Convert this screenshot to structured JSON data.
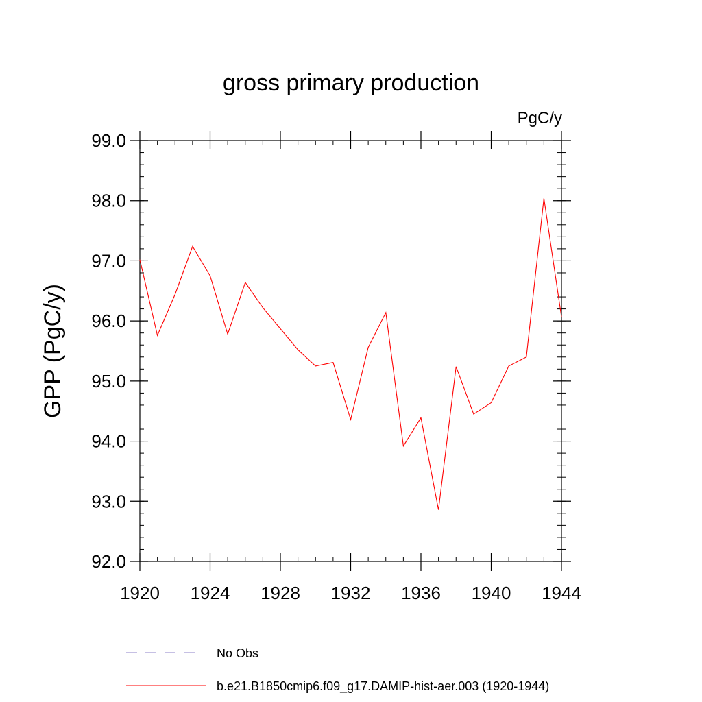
{
  "chart_data": {
    "type": "line",
    "title": "gross primary production",
    "units": "PgC/y",
    "xlabel": "",
    "ylabel": "GPP  (PgC/y)",
    "xlim": [
      1920,
      1944
    ],
    "ylim": [
      92.0,
      99.0
    ],
    "x_ticks": [
      "1920",
      "1924",
      "1928",
      "1932",
      "1936",
      "1940",
      "1944"
    ],
    "y_ticks": [
      "92.0",
      "93.0",
      "94.0",
      "95.0",
      "96.0",
      "97.0",
      "98.0",
      "99.0"
    ],
    "grid": false,
    "legend_position": "bottom",
    "series": [
      {
        "name": "b.e21.B1850cmip6.f09_g17.DAMIP-hist-aer.003 (1920-1944)",
        "color": "#ff0000",
        "style": "solid",
        "x": [
          1920,
          1921,
          1922,
          1923,
          1924,
          1925,
          1926,
          1927,
          1928,
          1929,
          1930,
          1931,
          1932,
          1933,
          1934,
          1935,
          1936,
          1937,
          1938,
          1939,
          1940,
          1941,
          1942,
          1943,
          1944
        ],
        "y": [
          97.02,
          95.76,
          96.44,
          97.24,
          96.75,
          95.78,
          96.64,
          96.22,
          95.87,
          95.52,
          95.25,
          95.31,
          94.36,
          95.56,
          96.14,
          93.92,
          94.39,
          92.86,
          95.24,
          94.45,
          94.64,
          95.25,
          95.4,
          98.04,
          96.07
        ]
      }
    ],
    "legend": [
      {
        "label": "No Obs",
        "color": "#8c82c8",
        "style": "dashed"
      },
      {
        "label": "b.e21.B1850cmip6.f09_g17.DAMIP-hist-aer.003 (1920-1944)",
        "color": "#ff0000",
        "style": "solid"
      }
    ]
  }
}
